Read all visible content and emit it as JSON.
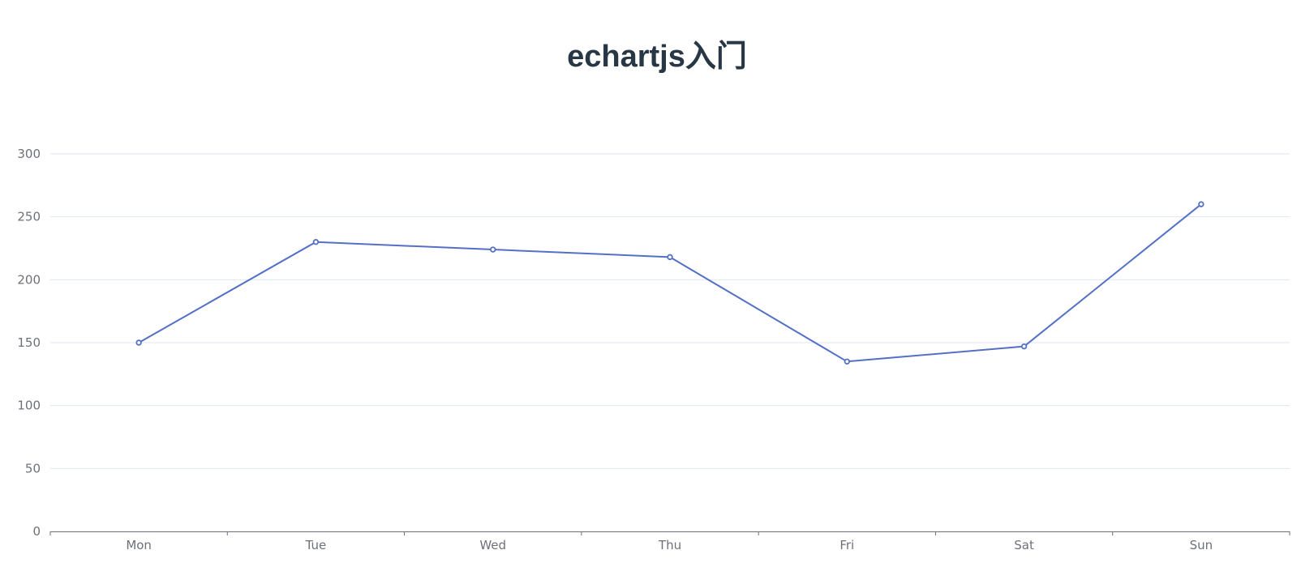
{
  "chart_data": {
    "type": "line",
    "title": "echartjs入门",
    "categories": [
      "Mon",
      "Tue",
      "Wed",
      "Thu",
      "Fri",
      "Sat",
      "Sun"
    ],
    "series": [
      {
        "values": [
          150,
          230,
          224,
          218,
          135,
          147,
          260
        ]
      }
    ],
    "ylim": [
      0,
      300
    ],
    "yticks": [
      "0",
      "50",
      "100",
      "150",
      "200",
      "250",
      "300"
    ],
    "grid": true,
    "colors": {
      "line": "#5470c6",
      "grid": "#e0e6f1",
      "axis": "#6e7079",
      "title": "#273746"
    }
  }
}
